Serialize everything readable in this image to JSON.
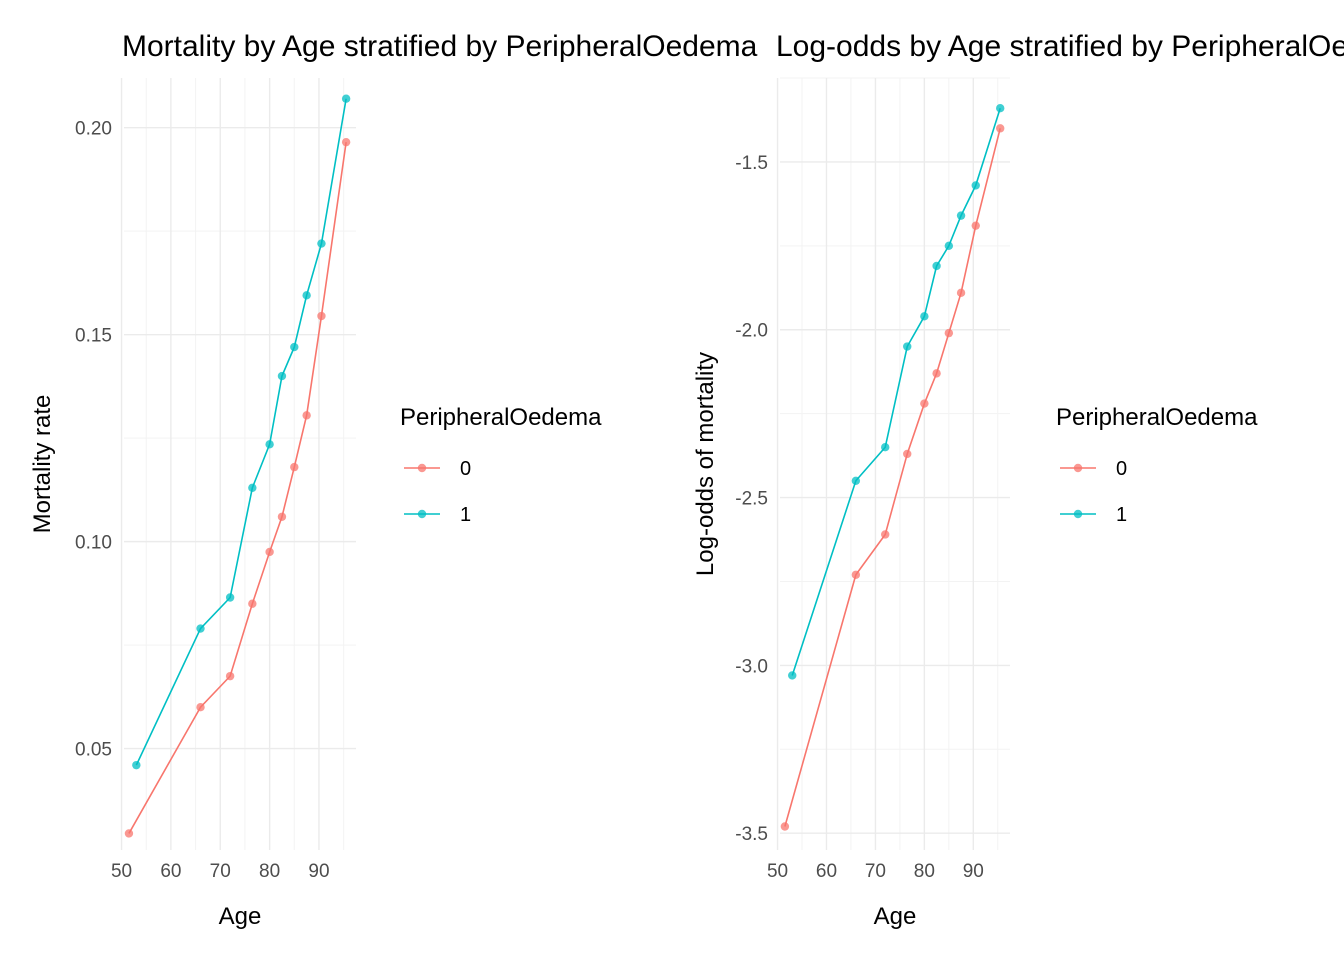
{
  "chart_data": [
    {
      "type": "line",
      "title": "Mortality by Age stratified by PeripheralOedema",
      "xlabel": "Age",
      "ylabel": "Mortality rate",
      "xlim": [
        50.5,
        97.5
      ],
      "ylim": [
        0.0255,
        0.212
      ],
      "xticks": [
        50,
        60,
        70,
        80,
        90
      ],
      "yticks": [
        0.05,
        0.1,
        0.15,
        0.2
      ],
      "ytick_labels": [
        "0.05",
        "0.10",
        "0.15",
        "0.20"
      ],
      "grid": true,
      "legend": {
        "title": "PeripheralOedema",
        "position": "right"
      },
      "series": [
        {
          "name": "0",
          "color": "#F8766D",
          "x": [
            51.5,
            66,
            72,
            76.5,
            80,
            82.5,
            85,
            87.5,
            90.5,
            95.5
          ],
          "y": [
            0.0295,
            0.06,
            0.0675,
            0.085,
            0.0975,
            0.106,
            0.118,
            0.1305,
            0.1545,
            0.1965
          ]
        },
        {
          "name": "1",
          "color": "#00BFC4",
          "x": [
            53,
            66,
            72,
            76.5,
            80,
            82.5,
            85,
            87.5,
            90.5,
            95.5
          ],
          "y": [
            0.046,
            0.079,
            0.0865,
            0.113,
            0.1235,
            0.14,
            0.147,
            0.1595,
            0.172,
            0.207
          ]
        }
      ]
    },
    {
      "type": "line",
      "title": "Log-odds by Age stratified by PeripheralOedema",
      "xlabel": "Age",
      "ylabel": "Log-odds of mortality",
      "xlim": [
        50.5,
        97.5
      ],
      "ylim": [
        -3.55,
        -1.25
      ],
      "xticks": [
        50,
        60,
        70,
        80,
        90
      ],
      "yticks": [
        -3.5,
        -3.0,
        -2.5,
        -2.0,
        -1.5
      ],
      "ytick_labels": [
        "-3.5",
        "-3.0",
        "-2.5",
        "-2.0",
        "-1.5"
      ],
      "grid": true,
      "legend": {
        "title": "PeripheralOedema",
        "position": "right"
      },
      "series": [
        {
          "name": "0",
          "color": "#F8766D",
          "x": [
            51.5,
            66,
            72,
            76.5,
            80,
            82.5,
            85,
            87.5,
            90.5,
            95.5
          ],
          "y": [
            -3.48,
            -2.73,
            -2.61,
            -2.37,
            -2.22,
            -2.13,
            -2.01,
            -1.89,
            -1.69,
            -1.4
          ]
        },
        {
          "name": "1",
          "color": "#00BFC4",
          "x": [
            53,
            66,
            72,
            76.5,
            80,
            82.5,
            85,
            87.5,
            90.5,
            95.5
          ],
          "y": [
            -3.03,
            -2.45,
            -2.35,
            -2.05,
            -1.96,
            -1.81,
            -1.75,
            -1.66,
            -1.57,
            -1.34
          ]
        }
      ]
    }
  ]
}
